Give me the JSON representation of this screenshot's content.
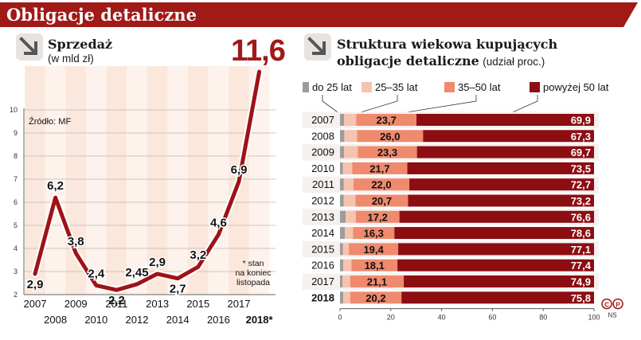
{
  "header": {
    "title": "Obligacje detaliczne"
  },
  "left": {
    "title": "Sprzedaż",
    "subtitle": "(w mld zł)",
    "headline_value": "11,6",
    "source": "Źródło: MF",
    "note_lines": [
      "* stan",
      "na koniec",
      "listopada"
    ]
  },
  "right": {
    "title_line1": "Struktura wiekowa kupujących",
    "title_line2": "obligacje detaliczne",
    "subtitle": "(udział proc.)",
    "footer_mark": "NS"
  },
  "colors": {
    "banner": "#a01a18",
    "line": "#9e1217",
    "dark_red": "#8c0d12",
    "salmon": "#ef8a6e",
    "pink": "#f6c3b0",
    "gray": "#9c9c9c"
  },
  "chart_data": [
    {
      "type": "line",
      "x": [
        "2007",
        "2008",
        "2009",
        "2010",
        "2011",
        "2012",
        "2013",
        "2014",
        "2015",
        "2016",
        "2017",
        "2018*"
      ],
      "values": [
        2.9,
        6.2,
        3.8,
        2.4,
        2.2,
        2.45,
        2.9,
        2.7,
        3.2,
        4.6,
        6.9,
        11.6
      ],
      "value_labels": [
        "2,9",
        "6,2",
        "3,8",
        "2,4",
        "2,2",
        "2,45",
        "2,9",
        "2,7",
        "3,2",
        "4,6",
        "6,9",
        "11,6"
      ],
      "yticks": [
        2,
        3,
        4,
        5,
        6,
        7,
        8,
        9,
        10
      ],
      "ylim": [
        2,
        10
      ],
      "grid": true
    },
    {
      "type": "bar",
      "orientation": "horizontal",
      "stacked": true,
      "categories": [
        "2007",
        "2008",
        "2009",
        "2010",
        "2011",
        "2012",
        "2013",
        "2014",
        "2015",
        "2016",
        "2017",
        "2018"
      ],
      "series": [
        {
          "name": "do 25 lat",
          "values": [
            1.6,
            1.7,
            1.6,
            1.1,
            1.5,
            1.5,
            2.2,
            1.9,
            1.1,
            1.3,
            1.0,
            1.3
          ]
        },
        {
          "name": "25–35 lat",
          "values": [
            4.8,
            5.0,
            5.4,
            3.7,
            3.8,
            4.6,
            4.0,
            3.2,
            2.4,
            3.2,
            3.0,
            2.7
          ]
        },
        {
          "name": "35–50 lat",
          "values": [
            23.7,
            26.0,
            23.3,
            21.7,
            22.0,
            20.7,
            17.2,
            16.3,
            19.4,
            18.1,
            21.1,
            20.2
          ]
        },
        {
          "name": "powyżej 50 lat",
          "values": [
            69.9,
            67.3,
            69.7,
            73.5,
            72.7,
            73.2,
            76.6,
            78.6,
            77.1,
            77.4,
            74.9,
            75.8
          ]
        }
      ],
      "label_35_50": [
        "23,7",
        "26,0",
        "23,3",
        "21,7",
        "22,0",
        "20,7",
        "17,2",
        "16,3",
        "19,4",
        "18,1",
        "21,1",
        "20,2"
      ],
      "label_50_plus": [
        "69,9",
        "67,3",
        "69,7",
        "73,5",
        "72,7",
        "73,2",
        "76,6",
        "78,6",
        "77,1",
        "77,4",
        "74,9",
        "75,8"
      ],
      "xticks": [
        0,
        20,
        40,
        60,
        80,
        100
      ],
      "xlim": [
        0,
        100
      ],
      "legend": "top"
    }
  ]
}
